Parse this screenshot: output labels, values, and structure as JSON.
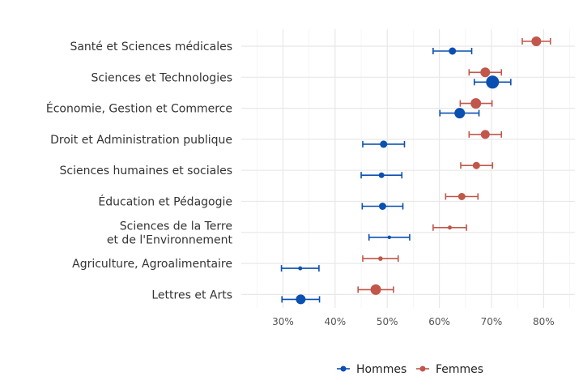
{
  "chart_data": {
    "type": "scatter",
    "subtype": "dot-with-error-bars",
    "orientation": "horizontal",
    "title": "",
    "xlabel": "",
    "ylabel": "",
    "xlim": [
      22,
      86
    ],
    "x_ticks": [
      30,
      40,
      50,
      60,
      70,
      80
    ],
    "x_tick_labels": [
      "30%",
      "40%",
      "50%",
      "60%",
      "70%",
      "80%"
    ],
    "grid": true,
    "legend_position": "bottom",
    "categories": [
      [
        "Santé et Sciences médicales"
      ],
      [
        "Sciences et Technologies"
      ],
      [
        "Économie, Gestion et Commerce"
      ],
      [
        "Droit et Administration publique"
      ],
      [
        "Sciences humaines et sociales"
      ],
      [
        "Éducation et Pédagogie"
      ],
      [
        "Sciences de la Terre",
        "et de l'Environnement"
      ],
      [
        "Agriculture, Agroalimentaire"
      ],
      [
        "Lettres et Arts"
      ]
    ],
    "series": [
      {
        "name": "Hommes",
        "color": "#0b4fb0",
        "values": [
          62.5,
          70.2,
          63.9,
          49.3,
          48.9,
          49.1,
          50.4,
          33.3,
          33.4
        ],
        "lower": [
          58.8,
          66.7,
          60.1,
          45.3,
          45.0,
          45.2,
          46.5,
          29.7,
          29.8
        ],
        "upper": [
          66.2,
          73.7,
          67.6,
          53.3,
          52.8,
          53.0,
          54.3,
          36.9,
          37.0
        ],
        "size": [
          4.5,
          8,
          6.5,
          4.5,
          3.5,
          4.5,
          2.2,
          2.5,
          6
        ]
      },
      {
        "name": "Femmes",
        "color": "#c0574a",
        "values": [
          78.6,
          68.8,
          67.0,
          68.8,
          67.1,
          64.3,
          62.0,
          48.7,
          47.8
        ],
        "lower": [
          75.9,
          65.7,
          64.0,
          65.7,
          64.1,
          61.2,
          58.8,
          45.3,
          44.4
        ],
        "upper": [
          81.3,
          71.9,
          70.1,
          71.9,
          70.2,
          67.4,
          65.2,
          52.1,
          51.2
        ],
        "size": [
          6,
          6,
          6.5,
          5.5,
          4.5,
          4.5,
          2.5,
          2.8,
          6.5
        ]
      }
    ]
  }
}
